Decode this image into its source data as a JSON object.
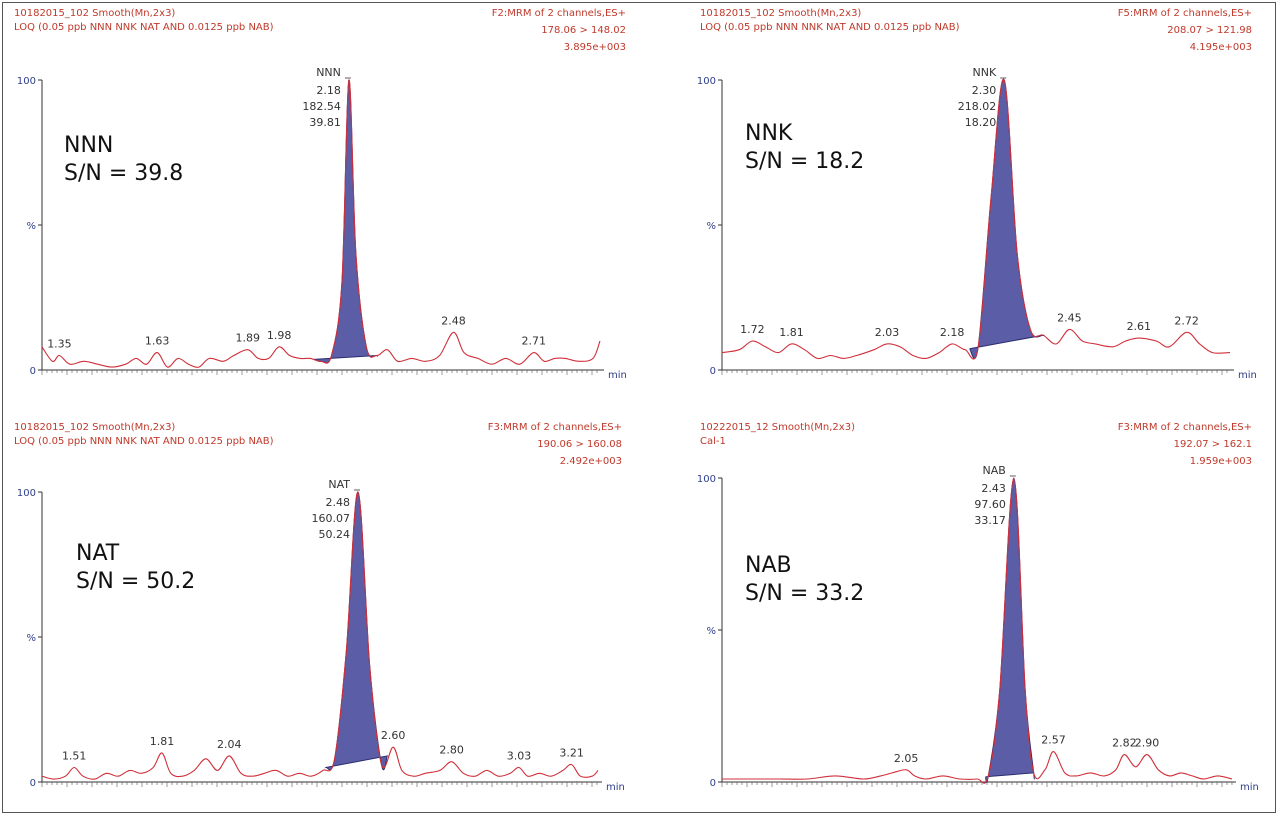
{
  "colors": {
    "trace": "#d0303a",
    "fill": "#5b5ea6",
    "header": "#c0392b",
    "axis": "#2f3e8a"
  },
  "chart_data": [
    {
      "type": "line",
      "header_left": [
        "10182015_102 Smooth(Mn,2x3)",
        "LOQ (0.05 ppb NNN NNK NAT AND 0.0125 ppb NAB)"
      ],
      "header_right": [
        "F2:MRM of 2 channels,ES+",
        "178.06 > 148.02",
        "3.895e+003"
      ],
      "y_ticks": [
        "100",
        "%",
        "0"
      ],
      "xlabel": "min",
      "annotation": [
        "NNN",
        "S/N = 39.8"
      ],
      "xlim": [
        1.3,
        2.9
      ],
      "ylim": [
        0,
        100
      ],
      "peak": {
        "x": 2.18,
        "width": 0.035,
        "labels": [
          "NNN",
          "2.18",
          "182.54",
          "39.81"
        ],
        "fill_range": [
          2.08,
          2.26
        ]
      },
      "trace": [
        [
          1.3,
          8
        ],
        [
          1.33,
          3
        ],
        [
          1.35,
          5
        ],
        [
          1.38,
          2
        ],
        [
          1.42,
          3
        ],
        [
          1.46,
          2
        ],
        [
          1.5,
          1
        ],
        [
          1.54,
          2
        ],
        [
          1.57,
          4
        ],
        [
          1.6,
          2
        ],
        [
          1.63,
          6
        ],
        [
          1.66,
          1
        ],
        [
          1.69,
          4
        ],
        [
          1.72,
          2
        ],
        [
          1.75,
          1
        ],
        [
          1.78,
          4
        ],
        [
          1.82,
          3
        ],
        [
          1.85,
          5
        ],
        [
          1.89,
          7
        ],
        [
          1.92,
          4
        ],
        [
          1.95,
          4
        ],
        [
          1.98,
          8
        ],
        [
          2.01,
          5
        ],
        [
          2.04,
          4
        ],
        [
          2.07,
          4
        ],
        [
          2.1,
          3
        ],
        [
          2.13,
          5
        ],
        [
          2.16,
          30
        ],
        [
          2.18,
          100
        ],
        [
          2.2,
          40
        ],
        [
          2.23,
          8
        ],
        [
          2.26,
          5
        ],
        [
          2.29,
          7
        ],
        [
          2.32,
          3
        ],
        [
          2.36,
          4
        ],
        [
          2.4,
          3
        ],
        [
          2.44,
          5
        ],
        [
          2.48,
          13
        ],
        [
          2.51,
          6
        ],
        [
          2.55,
          4
        ],
        [
          2.59,
          2
        ],
        [
          2.63,
          4
        ],
        [
          2.67,
          2
        ],
        [
          2.71,
          6
        ],
        [
          2.74,
          3
        ],
        [
          2.77,
          4
        ],
        [
          2.8,
          4
        ],
        [
          2.84,
          3
        ],
        [
          2.88,
          4
        ],
        [
          2.9,
          10
        ]
      ],
      "peak_labels": [
        {
          "x": 1.35,
          "text": "1.35"
        },
        {
          "x": 1.63,
          "text": "1.63"
        },
        {
          "x": 1.89,
          "text": "1.89"
        },
        {
          "x": 1.98,
          "text": "1.98"
        },
        {
          "x": 2.48,
          "text": "2.48"
        },
        {
          "x": 2.71,
          "text": "2.71"
        }
      ]
    },
    {
      "type": "line",
      "header_left": [
        "10182015_102 Smooth(Mn,2x3)",
        "LOQ (0.05 ppb NNN NNK NAT AND 0.0125 ppb NAB)"
      ],
      "header_right": [
        "F5:MRM of 2 channels,ES+",
        "208.07 > 121.98",
        "4.195e+003"
      ],
      "y_ticks": [
        "100",
        "%",
        "0"
      ],
      "xlabel": "min",
      "annotation": [
        "NNK",
        "S/N = 18.2"
      ],
      "xlim": [
        1.65,
        2.82
      ],
      "ylim": [
        0,
        100
      ],
      "peak": {
        "x": 2.3,
        "width": 0.035,
        "labels": [
          "NNK",
          "2.30",
          "218.02",
          "18.20"
        ],
        "fill_range": [
          2.22,
          2.39
        ]
      },
      "trace": [
        [
          1.65,
          6
        ],
        [
          1.69,
          7
        ],
        [
          1.72,
          10
        ],
        [
          1.75,
          8
        ],
        [
          1.78,
          6
        ],
        [
          1.81,
          9
        ],
        [
          1.84,
          7
        ],
        [
          1.87,
          4
        ],
        [
          1.9,
          5
        ],
        [
          1.93,
          4
        ],
        [
          1.96,
          5
        ],
        [
          2.0,
          7
        ],
        [
          2.03,
          9
        ],
        [
          2.06,
          8
        ],
        [
          2.09,
          5
        ],
        [
          2.12,
          4
        ],
        [
          2.15,
          6
        ],
        [
          2.18,
          9
        ],
        [
          2.21,
          7
        ],
        [
          2.24,
          8
        ],
        [
          2.27,
          60
        ],
        [
          2.3,
          100
        ],
        [
          2.33,
          40
        ],
        [
          2.36,
          14
        ],
        [
          2.39,
          12
        ],
        [
          2.42,
          9
        ],
        [
          2.45,
          14
        ],
        [
          2.48,
          10
        ],
        [
          2.51,
          9
        ],
        [
          2.55,
          8
        ],
        [
          2.58,
          10
        ],
        [
          2.61,
          11
        ],
        [
          2.65,
          10
        ],
        [
          2.68,
          8
        ],
        [
          2.72,
          13
        ],
        [
          2.75,
          9
        ],
        [
          2.78,
          6
        ],
        [
          2.82,
          6
        ]
      ],
      "peak_labels": [
        {
          "x": 1.72,
          "text": "1.72"
        },
        {
          "x": 1.81,
          "text": "1.81"
        },
        {
          "x": 2.03,
          "text": "2.03"
        },
        {
          "x": 2.18,
          "text": "2.18"
        },
        {
          "x": 2.45,
          "text": "2.45"
        },
        {
          "x": 2.61,
          "text": "2.61"
        },
        {
          "x": 2.72,
          "text": "2.72"
        }
      ]
    },
    {
      "type": "line",
      "header_left": [
        "10182015_102 Smooth(Mn,2x3)",
        "LOQ (0.05 ppb NNN NNK NAT AND 0.0125 ppb NAB)"
      ],
      "header_right": [
        "F3:MRM of 2 channels,ES+",
        "190.06 > 160.08",
        "2.492e+003"
      ],
      "y_ticks": [
        "100",
        "%",
        "0"
      ],
      "xlabel": "min",
      "annotation": [
        "NAT",
        "S/N = 50.2"
      ],
      "xlim": [
        1.4,
        3.3
      ],
      "ylim": [
        0,
        100
      ],
      "peak": {
        "x": 2.48,
        "width": 0.04,
        "labels": [
          "NAT",
          "2.48",
          "160.07",
          "50.24"
        ],
        "fill_range": [
          2.37,
          2.58
        ]
      },
      "trace": [
        [
          1.4,
          2
        ],
        [
          1.44,
          1
        ],
        [
          1.48,
          2
        ],
        [
          1.51,
          5
        ],
        [
          1.54,
          2
        ],
        [
          1.58,
          1
        ],
        [
          1.62,
          3
        ],
        [
          1.66,
          2
        ],
        [
          1.7,
          4
        ],
        [
          1.74,
          3
        ],
        [
          1.78,
          5
        ],
        [
          1.81,
          10
        ],
        [
          1.84,
          3
        ],
        [
          1.88,
          2
        ],
        [
          1.92,
          4
        ],
        [
          1.96,
          8
        ],
        [
          2.0,
          4
        ],
        [
          2.04,
          9
        ],
        [
          2.08,
          3
        ],
        [
          2.12,
          2
        ],
        [
          2.16,
          3
        ],
        [
          2.2,
          4
        ],
        [
          2.24,
          2
        ],
        [
          2.28,
          3
        ],
        [
          2.32,
          2
        ],
        [
          2.36,
          4
        ],
        [
          2.4,
          8
        ],
        [
          2.44,
          45
        ],
        [
          2.48,
          100
        ],
        [
          2.52,
          40
        ],
        [
          2.56,
          6
        ],
        [
          2.6,
          12
        ],
        [
          2.63,
          4
        ],
        [
          2.67,
          2
        ],
        [
          2.71,
          3
        ],
        [
          2.76,
          4
        ],
        [
          2.8,
          7
        ],
        [
          2.84,
          3
        ],
        [
          2.88,
          2
        ],
        [
          2.92,
          4
        ],
        [
          2.96,
          2
        ],
        [
          3.0,
          3
        ],
        [
          3.03,
          5
        ],
        [
          3.06,
          2
        ],
        [
          3.1,
          3
        ],
        [
          3.14,
          2
        ],
        [
          3.18,
          4
        ],
        [
          3.21,
          6
        ],
        [
          3.24,
          2
        ],
        [
          3.28,
          2
        ],
        [
          3.3,
          4
        ]
      ],
      "peak_labels": [
        {
          "x": 1.51,
          "text": "1.51"
        },
        {
          "x": 1.81,
          "text": "1.81"
        },
        {
          "x": 2.04,
          "text": "2.04"
        },
        {
          "x": 2.6,
          "text": "2.60"
        },
        {
          "x": 2.8,
          "text": "2.80"
        },
        {
          "x": 3.03,
          "text": "3.03"
        },
        {
          "x": 3.21,
          "text": "3.21"
        }
      ]
    },
    {
      "type": "line",
      "header_left": [
        "10222015_12 Smooth(Mn,2x3)",
        "Cal-1"
      ],
      "header_right": [
        "F3:MRM of 2 channels,ES+",
        "192.07 > 162.1",
        "1.959e+003"
      ],
      "y_ticks": [
        "100",
        "%",
        "0"
      ],
      "xlabel": "min",
      "annotation": [
        "NAB",
        "S/N = 33.2"
      ],
      "xlim": [
        1.4,
        3.2
      ],
      "ylim": [
        0,
        100
      ],
      "peak": {
        "x": 2.43,
        "width": 0.03,
        "labels": [
          "NAB",
          "2.43",
          "97.60",
          "33.17"
        ],
        "fill_range": [
          2.33,
          2.5
        ]
      },
      "trace": [
        [
          1.4,
          1
        ],
        [
          1.5,
          1
        ],
        [
          1.6,
          1
        ],
        [
          1.7,
          1
        ],
        [
          1.8,
          2
        ],
        [
          1.9,
          1
        ],
        [
          1.96,
          2
        ],
        [
          2.0,
          3
        ],
        [
          2.05,
          4
        ],
        [
          2.08,
          2
        ],
        [
          2.12,
          1
        ],
        [
          2.18,
          2
        ],
        [
          2.24,
          1
        ],
        [
          2.3,
          1
        ],
        [
          2.34,
          2
        ],
        [
          2.38,
          30
        ],
        [
          2.43,
          100
        ],
        [
          2.47,
          30
        ],
        [
          2.5,
          3
        ],
        [
          2.54,
          4
        ],
        [
          2.57,
          10
        ],
        [
          2.61,
          3
        ],
        [
          2.65,
          2
        ],
        [
          2.7,
          3
        ],
        [
          2.75,
          2
        ],
        [
          2.79,
          4
        ],
        [
          2.82,
          9
        ],
        [
          2.86,
          5
        ],
        [
          2.9,
          9
        ],
        [
          2.94,
          4
        ],
        [
          2.98,
          2
        ],
        [
          3.02,
          3
        ],
        [
          3.06,
          2
        ],
        [
          3.1,
          1
        ],
        [
          3.15,
          2
        ],
        [
          3.2,
          1
        ]
      ],
      "peak_labels": [
        {
          "x": 2.05,
          "text": "2.05"
        },
        {
          "x": 2.57,
          "text": "2.57"
        },
        {
          "x": 2.82,
          "text": "2.82"
        },
        {
          "x": 2.9,
          "text": "2.90"
        }
      ]
    }
  ]
}
